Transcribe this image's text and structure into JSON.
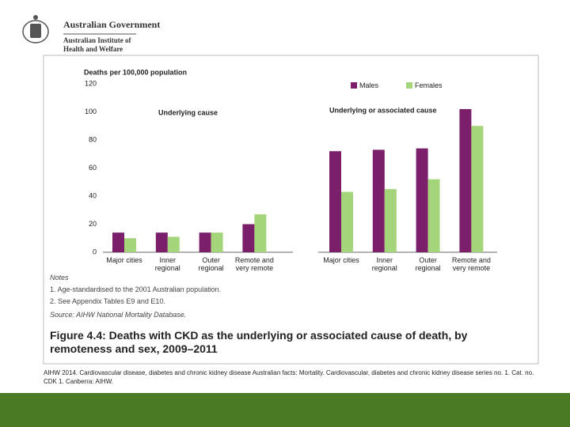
{
  "header": {
    "government": "Australian Government",
    "institute": "Australian Institute of Health and Welfare"
  },
  "chart_data": {
    "type": "bar",
    "y_label": "Deaths per 100,000 population",
    "annotations": [
      "Underlying cause",
      "Underlying or associated cause"
    ],
    "categories": [
      "Major cities",
      "Inner regional",
      "Outer regional",
      "Remote and very remote",
      "Major cities",
      "Inner regional",
      "Outer regional",
      "Remote and very remote"
    ],
    "series": [
      {
        "name": "Males",
        "color": "#7b1f6a",
        "values": [
          14,
          14,
          14,
          20,
          72,
          73,
          74,
          102
        ]
      },
      {
        "name": "Females",
        "color": "#a5d57a",
        "values": [
          10,
          11,
          14,
          27,
          43,
          45,
          52,
          90
        ]
      }
    ],
    "ylim": [
      0,
      120
    ],
    "yticks": [
      0,
      20,
      40,
      60,
      80,
      100,
      120
    ],
    "grid": false
  },
  "notes": {
    "heading": "Notes",
    "items": [
      "1.  Age-standardised to the 2001 Australian population.",
      "2.  See Appendix Tables E9 and E10."
    ],
    "source": "Source: AIHW National Mortality Database."
  },
  "caption": "Figure 4.4: Deaths with CKD as the underlying or associated cause of death, by remoteness and sex, 2009–2011",
  "citation": "AIHW 2014. Cardiovascular disease, diabetes and chronic kidney disease Australian facts: Mortality. Cardiovascular, diabetes and chronic kidney disease series no. 1. Cat. no. CDK 1. Canberra: AIHW."
}
